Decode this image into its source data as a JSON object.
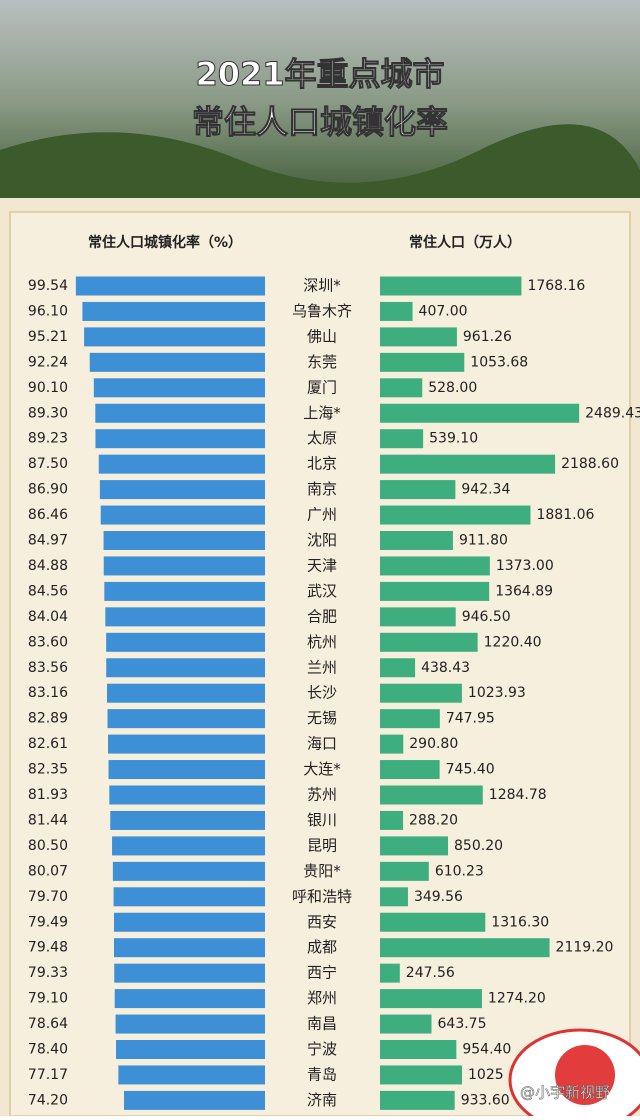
{
  "chart_data": {
    "type": "bar",
    "title": "2021年重点城市",
    "subtitle": "常住人口城镇化率",
    "categories": [
      "深圳*",
      "乌鲁木齐",
      "佛山",
      "东莞",
      "厦门",
      "上海*",
      "太原",
      "北京",
      "南京",
      "广州",
      "沈阳",
      "天津",
      "武汉",
      "合肥",
      "杭州",
      "兰州",
      "长沙",
      "无锡",
      "海口",
      "大连*",
      "苏州",
      "银川",
      "昆明",
      "贵阳*",
      "呼和浩特",
      "西安",
      "成都",
      "西宁",
      "郑州",
      "南昌",
      "宁波",
      "青岛",
      "济南"
    ],
    "series": [
      {
        "name": "常住人口城镇化率（%）",
        "color": "#3d8fd6",
        "xlim": [
          0,
          100
        ],
        "values": [
          99.54,
          96.1,
          95.21,
          92.24,
          90.1,
          89.3,
          89.23,
          87.5,
          86.9,
          86.46,
          84.97,
          84.88,
          84.56,
          84.04,
          83.6,
          83.56,
          83.16,
          82.89,
          82.61,
          82.35,
          81.93,
          81.44,
          80.5,
          80.07,
          79.7,
          79.49,
          79.48,
          79.33,
          79.1,
          78.64,
          78.4,
          77.17,
          74.2
        ],
        "value_labels": [
          "99.54",
          "96.10",
          "95.21",
          "92.24",
          "90.10",
          "89.30",
          "89.23",
          "87.50",
          "86.90",
          "86.46",
          "84.97",
          "84.88",
          "84.56",
          "84.04",
          "83.60",
          "83.56",
          "83.16",
          "82.89",
          "82.61",
          "82.35",
          "81.93",
          "81.44",
          "80.50",
          "80.07",
          "79.70",
          "79.49",
          "79.48",
          "79.33",
          "79.10",
          "78.64",
          "78.40",
          "77.17",
          "74.20"
        ]
      },
      {
        "name": "常住人口（万人）",
        "color": "#3fae7f",
        "xlim": [
          0,
          2500
        ],
        "values": [
          1768.16,
          407.0,
          961.26,
          1053.68,
          528.0,
          2489.43,
          539.1,
          2188.6,
          942.34,
          1881.06,
          911.8,
          1373.0,
          1364.89,
          946.5,
          1220.4,
          438.43,
          1023.93,
          747.95,
          290.8,
          745.4,
          1284.78,
          288.2,
          850.2,
          610.23,
          349.56,
          1316.3,
          2119.2,
          247.56,
          1274.2,
          643.75,
          954.4,
          1025,
          933.6
        ],
        "value_labels": [
          "1768.16",
          "407.00",
          "961.26",
          "1053.68",
          "528.00",
          "2489.43",
          "539.10",
          "2188.60",
          "942.34",
          "1881.06",
          "911.80",
          "1373.00",
          "1364.89",
          "946.50",
          "1220.40",
          "438.43",
          "1023.93",
          "747.95",
          "290.80",
          "745.40",
          "1284.78",
          "288.20",
          "850.20",
          "610.23",
          "349.56",
          "1316.30",
          "2119.20",
          "247.56",
          "1274.20",
          "643.75",
          "954.40",
          "1025",
          "933.60"
        ]
      }
    ],
    "watermark": "@小宇新视野"
  }
}
